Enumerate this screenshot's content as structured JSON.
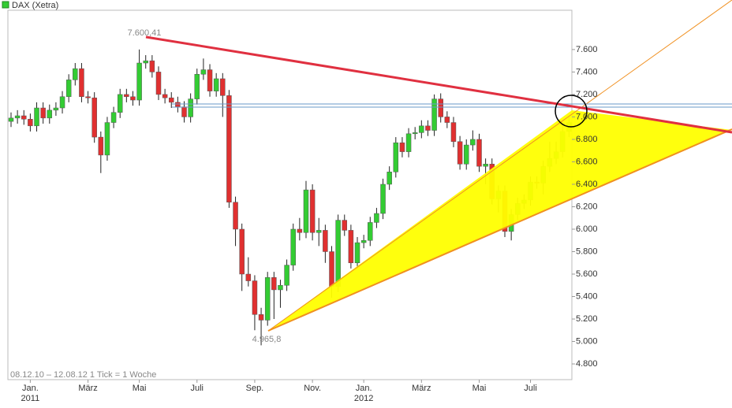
{
  "chart_data": {
    "type": "candlestick",
    "title": "DAX (Xetra)",
    "footer": "08.12.10 – 12.08.12   1 Tick = 1 Woche",
    "annotations": [
      "7.600,41",
      "4.965,8"
    ],
    "up_color": "#33cc33",
    "down_color": "#e03030",
    "categories": [
      null,
      null,
      null,
      "Jan.",
      null,
      null,
      null,
      null,
      null,
      null,
      null,
      null,
      "März",
      null,
      null,
      null,
      null,
      null,
      null,
      null,
      "Mai",
      null,
      null,
      null,
      null,
      null,
      null,
      null,
      null,
      "Juli",
      null,
      null,
      null,
      null,
      null,
      null,
      null,
      null,
      "Sep.",
      null,
      null,
      null,
      null,
      null,
      null,
      null,
      null,
      "Nov.",
      null,
      null,
      null,
      null,
      null,
      null,
      null,
      "Jan.",
      null,
      null,
      null,
      null,
      null,
      null,
      null,
      null,
      "März",
      null,
      null,
      null,
      null,
      null,
      null,
      null,
      null,
      "Mai",
      null,
      null,
      null,
      null,
      null,
      null,
      null,
      "Juli",
      null,
      null,
      null,
      null,
      null,
      null
    ],
    "year_labels": [
      "2011",
      "2012"
    ],
    "open": [
      6960,
      6990,
      7010,
      6980,
      6920,
      7080,
      6990,
      7060,
      7080,
      7180,
      7330,
      7430,
      7180,
      7170,
      6820,
      6660,
      6950,
      7040,
      7200,
      7180,
      7150,
      7480,
      7500,
      7400,
      7200,
      7170,
      7130,
      7090,
      7000,
      7160,
      7380,
      7420,
      7230,
      7340,
      7190,
      6240,
      6000,
      5600,
      5540,
      5240,
      5190,
      5570,
      5460,
      5500,
      5680,
      6000,
      5970,
      6350,
      5970,
      5990,
      5800,
      5490,
      6080,
      5990,
      5700,
      5880,
      5900,
      6060,
      6140,
      6400,
      6510,
      6770,
      6690,
      6850,
      6860,
      6920,
      6880,
      7160,
      7000,
      6950,
      6780,
      6580,
      6750,
      6800,
      6560,
      6580,
      6270,
      6340,
      5980,
      6130,
      6230,
      6260,
      6420,
      6410,
      6560,
      6630,
      6690,
      6870
    ],
    "high": [
      7040,
      7060,
      7060,
      7030,
      7130,
      7130,
      7110,
      7130,
      7230,
      7380,
      7480,
      7480,
      7230,
      7220,
      6870,
      7000,
      7090,
      7250,
      7250,
      7230,
      7600.41,
      7550,
      7550,
      7450,
      7250,
      7220,
      7180,
      7140,
      7210,
      7430,
      7520,
      7470,
      7390,
      7390,
      7240,
      6290,
      6050,
      5750,
      5590,
      5300,
      5620,
      5620,
      5550,
      5730,
      6050,
      6100,
      6430,
      6400,
      6100,
      6040,
      5850,
      6130,
      6130,
      6040,
      5930,
      5950,
      6110,
      6190,
      6450,
      6560,
      6820,
      6820,
      6900,
      6910,
      6970,
      6970,
      7200,
      7210,
      7050,
      7000,
      6830,
      6800,
      6880,
      6850,
      6630,
      6630,
      6390,
      6390,
      6180,
      6280,
      6310,
      6470,
      6470,
      6610,
      6780,
      6780,
      6920,
      7000
    ],
    "low": [
      6910,
      6940,
      6930,
      6870,
      6870,
      6940,
      6940,
      7010,
      7030,
      7130,
      7280,
      7130,
      7120,
      6770,
      6500,
      6610,
      6900,
      6990,
      7130,
      7100,
      7100,
      7430,
      7350,
      7150,
      7120,
      7080,
      7040,
      6950,
      6950,
      7110,
      7330,
      7180,
      7180,
      7000,
      6190,
      5850,
      5450,
      5490,
      5100,
      4965.8,
      5140,
      5200,
      5300,
      5450,
      5630,
      5900,
      5920,
      5900,
      5850,
      5700,
      5390,
      5440,
      5940,
      5650,
      5650,
      5830,
      5850,
      6010,
      6090,
      6350,
      6460,
      6640,
      6640,
      6800,
      6810,
      6830,
      6830,
      6950,
      6900,
      6730,
      6530,
      6530,
      6700,
      6510,
      6400,
      6220,
      6150,
      5930,
      5900,
      6080,
      6180,
      6210,
      6360,
      6310,
      6510,
      6580,
      6640,
      6820
    ],
    "close": [
      6990,
      7010,
      6980,
      6920,
      7080,
      6990,
      7060,
      7080,
      7180,
      7330,
      7430,
      7180,
      7170,
      6820,
      6660,
      6950,
      7040,
      7200,
      7180,
      7150,
      7480,
      7500,
      7400,
      7200,
      7170,
      7130,
      7090,
      7000,
      7160,
      7380,
      7420,
      7230,
      7340,
      7190,
      6240,
      6000,
      5600,
      5540,
      5240,
      5190,
      5570,
      5460,
      5500,
      5680,
      6000,
      5970,
      6350,
      5970,
      5990,
      5800,
      5490,
      6080,
      5990,
      5700,
      5880,
      5900,
      6060,
      6140,
      6400,
      6510,
      6770,
      6690,
      6850,
      6860,
      6920,
      6880,
      7160,
      7000,
      6950,
      6780,
      6580,
      6750,
      6800,
      6560,
      6580,
      6270,
      6340,
      5980,
      6130,
      6230,
      6260,
      6420,
      6410,
      6560,
      6630,
      6690,
      6870,
      6950
    ],
    "ylim": [
      4660,
      7950
    ],
    "yticks": [
      {
        "value": 4800,
        "label": "4.800"
      },
      {
        "value": 5000,
        "label": "5.000"
      },
      {
        "value": 5200,
        "label": "5.200"
      },
      {
        "value": 5400,
        "label": "5.400"
      },
      {
        "value": 5600,
        "label": "5.600"
      },
      {
        "value": 5800,
        "label": "5.800"
      },
      {
        "value": 6000,
        "label": "6.000"
      },
      {
        "value": 6200,
        "label": "6.200"
      },
      {
        "value": 6400,
        "label": "6.400"
      },
      {
        "value": 6600,
        "label": "6.600"
      },
      {
        "value": 6800,
        "label": "6.800"
      },
      {
        "value": 7000,
        "label": "7.000"
      },
      {
        "value": 7200,
        "label": "7.200"
      },
      {
        "value": 7400,
        "label": "7.400"
      },
      {
        "value": 7600,
        "label": "7.600"
      }
    ]
  }
}
